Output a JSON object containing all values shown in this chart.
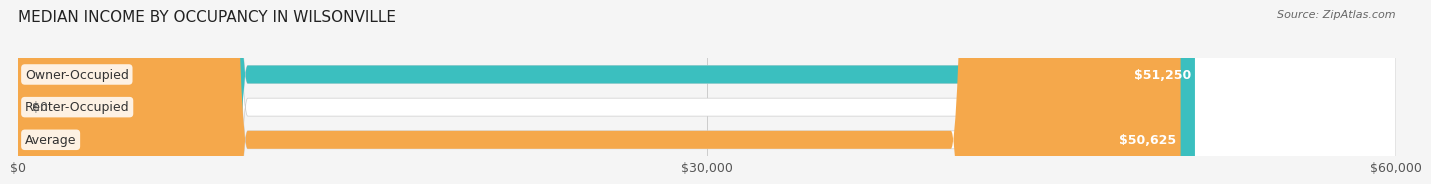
{
  "title": "MEDIAN INCOME BY OCCUPANCY IN WILSONVILLE",
  "source": "Source: ZipAtlas.com",
  "categories": [
    "Owner-Occupied",
    "Renter-Occupied",
    "Average"
  ],
  "values": [
    51250,
    0,
    50625
  ],
  "bar_colors": [
    "#3bbfbf",
    "#c4a8d4",
    "#f5a84b"
  ],
  "bar_labels": [
    "$51,250",
    "$0",
    "$50,625"
  ],
  "xlim": [
    0,
    60000
  ],
  "xticks": [
    0,
    30000,
    60000
  ],
  "xticklabels": [
    "$0",
    "$30,000",
    "$60,000"
  ],
  "background_color": "#f5f5f5",
  "bar_bg_color": "#e8e8e8",
  "label_fontsize": 9,
  "title_fontsize": 11,
  "source_fontsize": 8,
  "bar_height": 0.55
}
